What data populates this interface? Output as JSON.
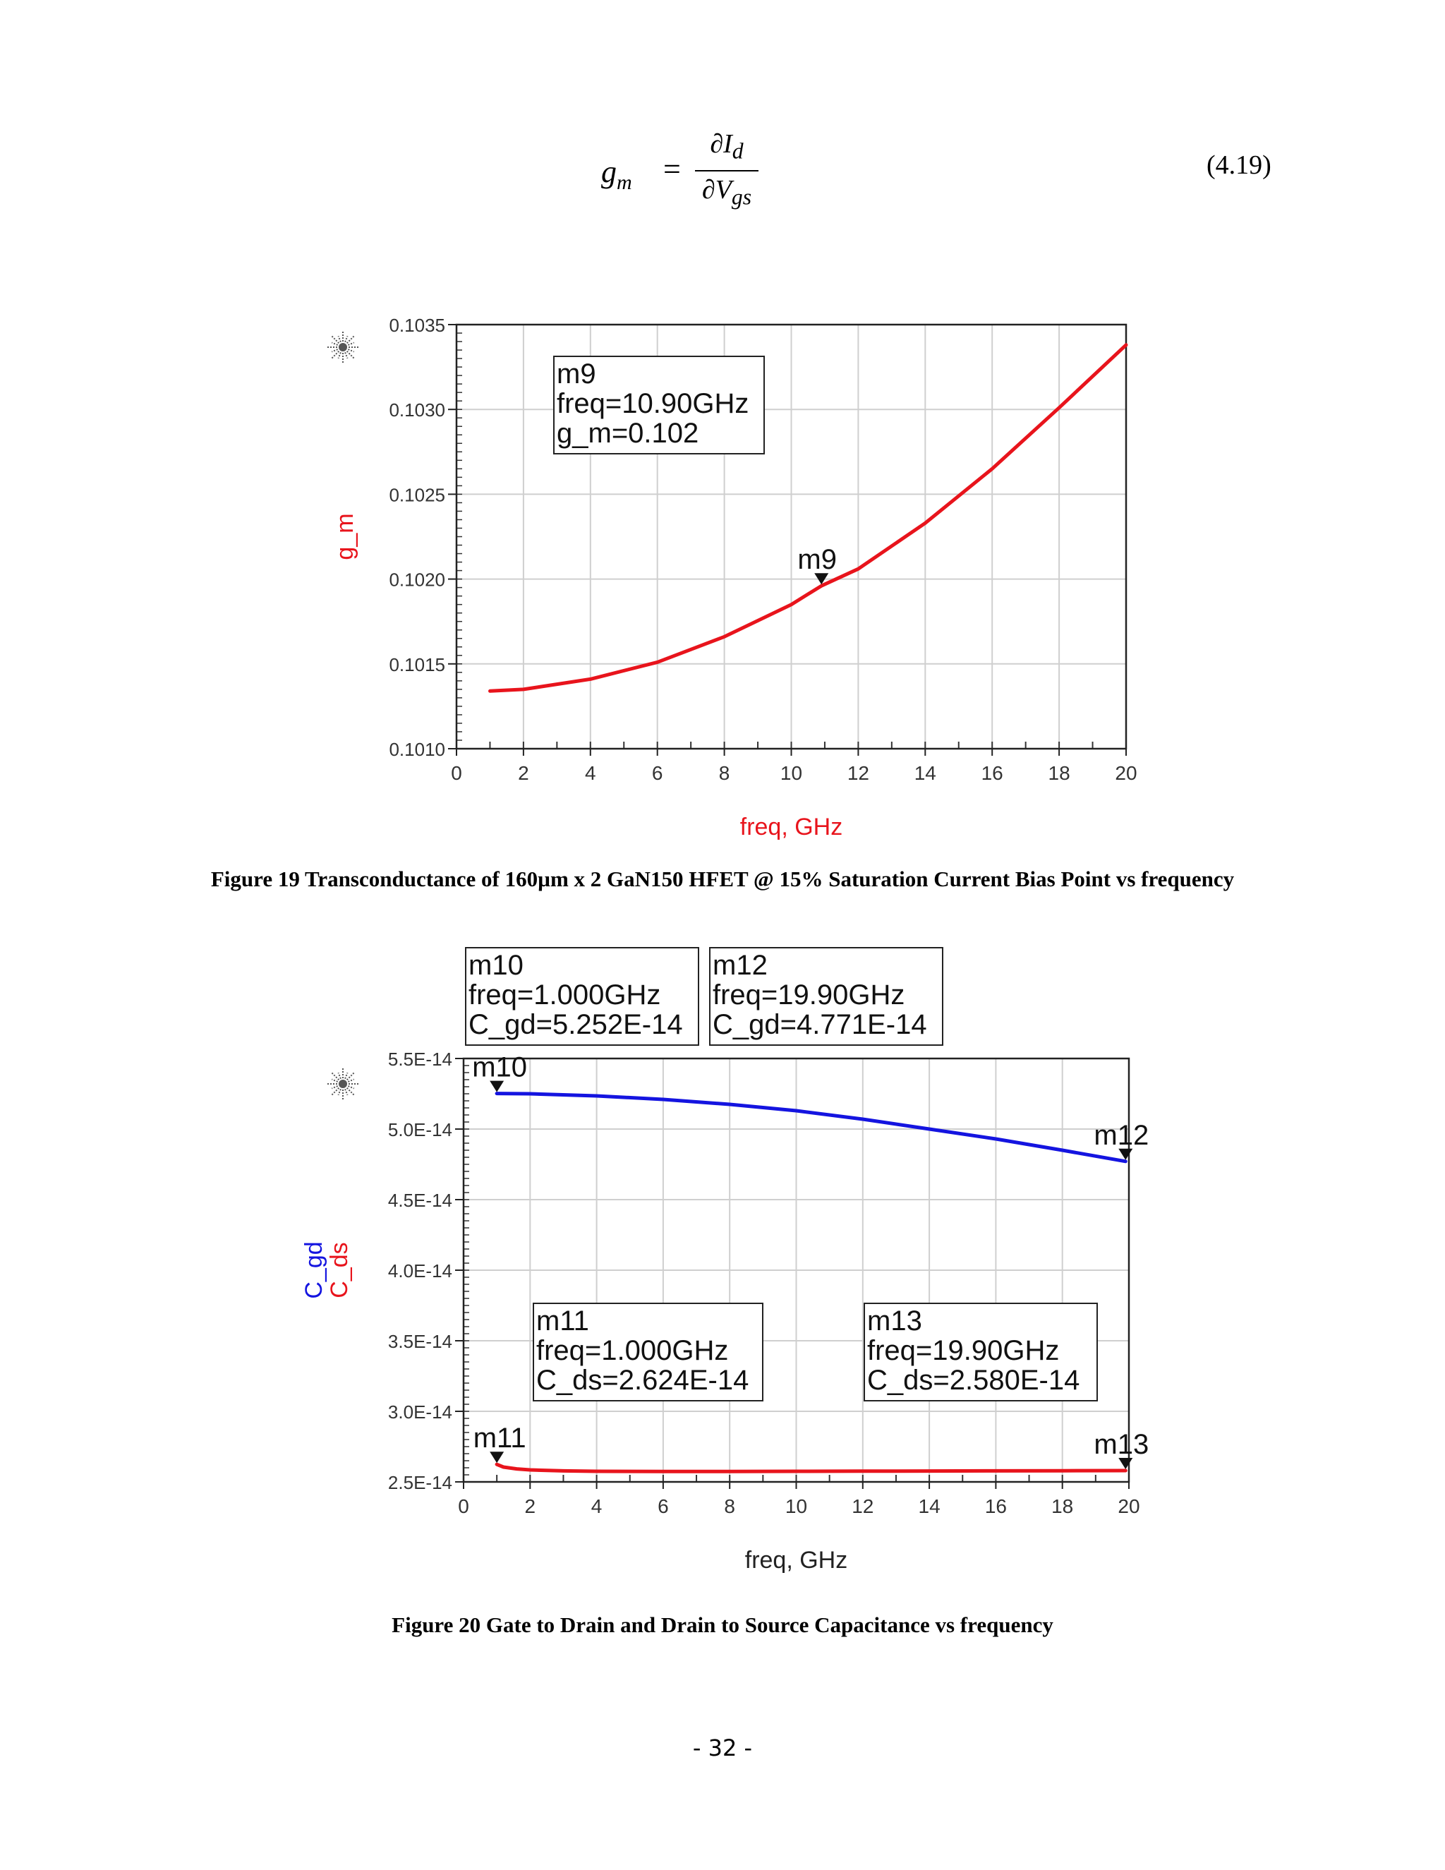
{
  "equation": {
    "lhs_symbol": "g",
    "lhs_subscript": "m",
    "equals": "=",
    "numerator_symbol": "∂I",
    "numerator_subscript": "d",
    "denominator_symbol": "∂V",
    "denominator_subscript": "gs",
    "number": "(4.19)"
  },
  "figure19": {
    "caption": "Figure 19 Transconductance of 160µm x 2 GaN150 HFET @ 15% Saturation Current Bias Point vs frequency",
    "chart_data": {
      "type": "line",
      "xlabel": "freq, GHz",
      "ylabel": "g_m",
      "xlim": [
        0,
        20
      ],
      "ylim": [
        0.101,
        0.1035
      ],
      "xticks": [
        "0",
        "2",
        "4",
        "6",
        "8",
        "10",
        "12",
        "14",
        "16",
        "18",
        "20"
      ],
      "yticks": [
        "0.1010",
        "0.1015",
        "0.1020",
        "0.1025",
        "0.1030",
        "0.1035"
      ],
      "grid": true,
      "series": [
        {
          "name": "g_m",
          "color": "#e8141c",
          "x": [
            1,
            2,
            4,
            6,
            8,
            10,
            10.9,
            12,
            14,
            16,
            18,
            20
          ],
          "y": [
            0.10134,
            0.10135,
            0.10141,
            0.10151,
            0.10166,
            0.10185,
            0.10196,
            0.10206,
            0.10233,
            0.10265,
            0.10301,
            0.10338
          ]
        }
      ],
      "markers": [
        {
          "name": "m9",
          "x": 10.9,
          "y": 0.10196,
          "lines": [
            "m9",
            "freq=10.90GHz",
            "g_m=0.102"
          ]
        }
      ]
    }
  },
  "figure20": {
    "caption": "Figure 20 Gate to Drain and Drain to Source Capacitance vs frequency",
    "chart_data": {
      "type": "line",
      "xlabel": "freq, GHz",
      "ylabel_lines": [
        {
          "text": "C_gd",
          "color": "#1414e0"
        },
        {
          "text": "C_ds",
          "color": "#e8141c"
        }
      ],
      "xlim": [
        0,
        20
      ],
      "ylim": [
        2.5e-14,
        5.5e-14
      ],
      "xticks": [
        "0",
        "2",
        "4",
        "6",
        "8",
        "10",
        "12",
        "14",
        "16",
        "18",
        "20"
      ],
      "yticks": [
        "2.5E-14",
        "3.0E-14",
        "3.5E-14",
        "4.0E-14",
        "4.5E-14",
        "5.0E-14",
        "5.5E-14"
      ],
      "grid": true,
      "series": [
        {
          "name": "C_gd",
          "color": "#1414e0",
          "x": [
            1,
            2,
            4,
            6,
            8,
            10,
            12,
            14,
            16,
            18,
            19.9
          ],
          "y": [
            5.252e-14,
            5.25e-14,
            5.235e-14,
            5.21e-14,
            5.175e-14,
            5.13e-14,
            5.07e-14,
            5e-14,
            4.93e-14,
            4.85e-14,
            4.771e-14
          ]
        },
        {
          "name": "C_ds",
          "color": "#e8141c",
          "x": [
            1,
            1.2,
            1.6,
            2,
            3,
            4,
            6,
            8,
            10,
            12,
            14,
            16,
            18,
            19.9
          ],
          "y": [
            2.624e-14,
            2.605e-14,
            2.592e-14,
            2.585e-14,
            2.578e-14,
            2.575e-14,
            2.574e-14,
            2.574e-14,
            2.575e-14,
            2.576e-14,
            2.577e-14,
            2.578e-14,
            2.579e-14,
            2.58e-14
          ]
        }
      ],
      "markers": [
        {
          "name": "m10",
          "x": 1.0,
          "y": 5.252e-14,
          "lines": [
            "m10",
            "freq=1.000GHz",
            "C_gd=5.252E-14"
          ]
        },
        {
          "name": "m12",
          "x": 19.9,
          "y": 4.771e-14,
          "lines": [
            "m12",
            "freq=19.90GHz",
            "C_gd=4.771E-14"
          ]
        },
        {
          "name": "m11",
          "x": 1.0,
          "y": 2.624e-14,
          "lines": [
            "m11",
            "freq=1.000GHz",
            "C_ds=2.624E-14"
          ]
        },
        {
          "name": "m13",
          "x": 19.9,
          "y": 2.58e-14,
          "lines": [
            "m13",
            "freq=19.90GHz",
            "C_ds=2.580E-14"
          ]
        }
      ]
    }
  },
  "page_number": "- 32 -"
}
